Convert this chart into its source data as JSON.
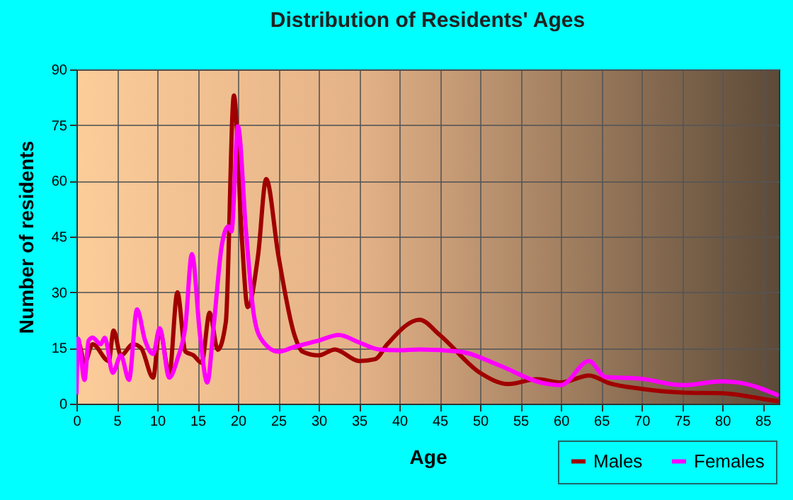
{
  "chart_data": {
    "type": "line",
    "title": "Distribution of Residents' Ages",
    "xlabel": "Age",
    "ylabel": "Number of residents",
    "xlim": [
      0,
      87
    ],
    "xticks": [
      0,
      5,
      10,
      15,
      20,
      25,
      30,
      35,
      40,
      45,
      50,
      55,
      60,
      65,
      70,
      75,
      80,
      85
    ],
    "ylim": [
      0,
      90
    ],
    "yticks": [
      0,
      15,
      30,
      45,
      60,
      75,
      90
    ],
    "grid": true,
    "legend": "bottom right",
    "line_style": "solid",
    "marker": "none",
    "series": [
      {
        "name": "Males",
        "color": "#a00000",
        "x": [
          0,
          0.3,
          1,
          2,
          4,
          4.6,
          5.5,
          7,
          8,
          9.5,
          10.3,
          11.5,
          12.5,
          13.5,
          14.5,
          15.5,
          16.5,
          17.5,
          18.5,
          19.5,
          20.5,
          21.2,
          22.5,
          23.5,
          25,
          27,
          28,
          30,
          32,
          35,
          37,
          38.5,
          42.5,
          45,
          50,
          53.5,
          57,
          60,
          63.5,
          66,
          70,
          75,
          80,
          85,
          87
        ],
        "values": [
          9.5,
          16,
          11,
          16,
          11.5,
          19.7,
          13,
          16,
          15,
          7,
          20,
          8,
          30,
          14,
          13,
          11,
          24.5,
          14.5,
          22,
          83,
          44,
          26,
          40,
          60.5,
          40,
          18.5,
          14,
          13,
          14.6,
          11.5,
          12,
          16,
          22.6,
          18.5,
          8.3,
          5.3,
          6.6,
          5.7,
          7.6,
          5.5,
          4,
          3,
          2.8,
          1.3,
          0.6
        ]
      },
      {
        "name": "Females",
        "color": "#ff00ff",
        "x": [
          0,
          0.2,
          1,
          1.5,
          2,
          3,
          3.5,
          4.5,
          5.5,
          6.5,
          7.5,
          8.5,
          9.5,
          10.3,
          11.5,
          12.5,
          13.5,
          14.3,
          15.3,
          16.2,
          17,
          18,
          18.8,
          19.2,
          20,
          21,
          22,
          23,
          25,
          27,
          30,
          32.5,
          35,
          37.5,
          40,
          42.5,
          47.5,
          52.5,
          57.5,
          60,
          63.5,
          65.5,
          70,
          75,
          80,
          82,
          87
        ],
        "values": [
          2.5,
          17.5,
          6.4,
          17,
          17.8,
          16,
          17.8,
          8.3,
          13,
          6.4,
          25.4,
          17,
          13.4,
          20.3,
          7,
          12,
          21,
          40.3,
          18.5,
          5.7,
          21,
          42.6,
          47.7,
          46.4,
          74.7,
          46.4,
          23.5,
          17,
          14,
          15.3,
          17,
          18.5,
          16.5,
          14.6,
          14.4,
          14.6,
          14,
          10.2,
          5.7,
          5,
          11.5,
          7.2,
          6.7,
          5,
          6,
          5.7,
          2.2
        ]
      }
    ]
  }
}
